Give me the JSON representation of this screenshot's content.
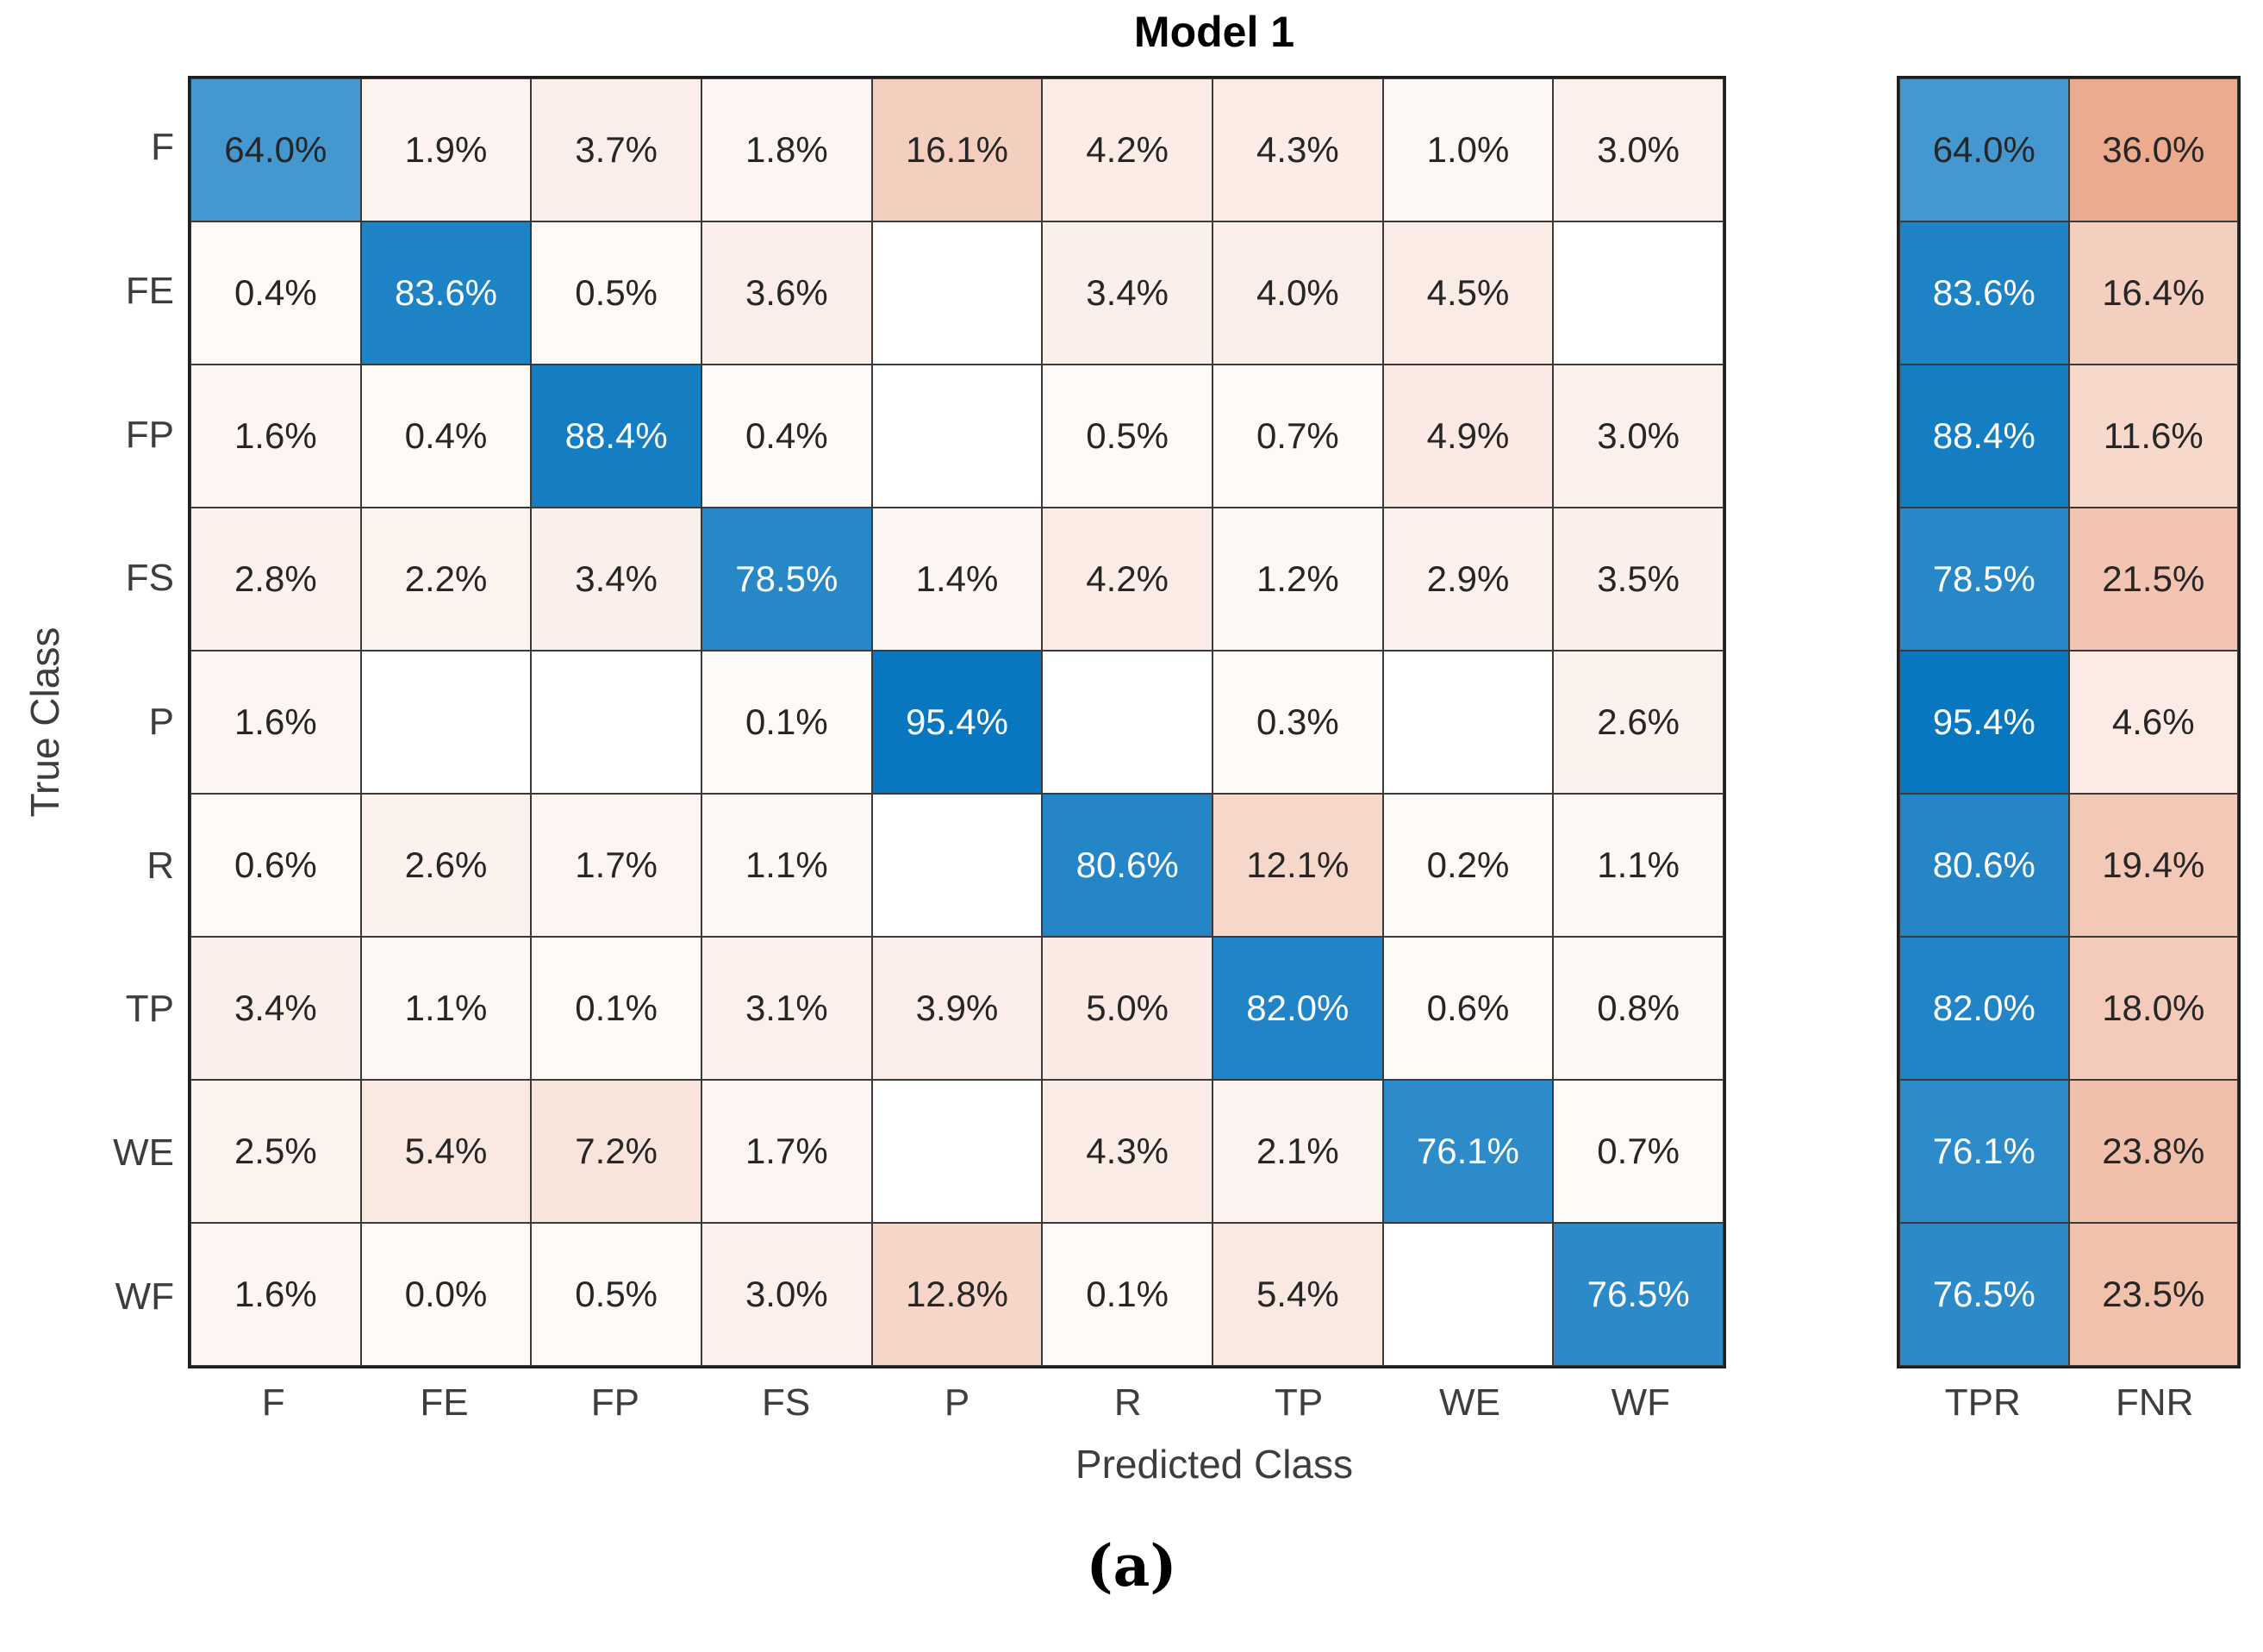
{
  "figure": {
    "title": "Model 1",
    "caption": "(a)",
    "x_axis_label": "Predicted Class",
    "y_axis_label": "True Class"
  },
  "chart_data": {
    "type": "heatmap",
    "subtype": "confusion-matrix",
    "title": "Model 1",
    "xlabel": "Predicted Class",
    "ylabel": "True Class",
    "classes": [
      "F",
      "FE",
      "FP",
      "FS",
      "P",
      "R",
      "TP",
      "WE",
      "WF"
    ],
    "unit": "%",
    "matrix_percent": [
      [
        64.0,
        1.9,
        3.7,
        1.8,
        16.1,
        4.2,
        4.3,
        1.0,
        3.0
      ],
      [
        0.4,
        83.6,
        0.5,
        3.6,
        null,
        3.4,
        4.0,
        4.5,
        null
      ],
      [
        1.6,
        0.4,
        88.4,
        0.4,
        null,
        0.5,
        0.7,
        4.9,
        3.0
      ],
      [
        2.8,
        2.2,
        3.4,
        78.5,
        1.4,
        4.2,
        1.2,
        2.9,
        3.5
      ],
      [
        1.6,
        null,
        null,
        0.1,
        95.4,
        null,
        0.3,
        null,
        2.6
      ],
      [
        0.6,
        2.6,
        1.7,
        1.1,
        null,
        80.6,
        12.1,
        0.2,
        1.1
      ],
      [
        3.4,
        1.1,
        0.1,
        3.1,
        3.9,
        5.0,
        82.0,
        0.6,
        0.8
      ],
      [
        2.5,
        5.4,
        7.2,
        1.7,
        null,
        4.3,
        2.1,
        76.1,
        0.7
      ],
      [
        1.6,
        0.0,
        0.5,
        3.0,
        12.8,
        0.1,
        5.4,
        null,
        76.5
      ]
    ],
    "summary": {
      "columns": [
        "TPR",
        "FNR"
      ],
      "TPR": [
        64.0,
        83.6,
        88.4,
        78.5,
        95.4,
        80.6,
        82.0,
        76.1,
        76.5
      ],
      "FNR": [
        36.0,
        16.4,
        11.6,
        21.5,
        4.6,
        19.4,
        18.0,
        23.8,
        23.5
      ]
    },
    "colors": {
      "diagonal": "#0072BD",
      "off_diagonal": "#D95319",
      "grid_line": "#3a3a3a",
      "background": "#ffffff"
    },
    "layout": {
      "grid": "on",
      "summary_position": "right",
      "blank_cells_are_zero": true
    }
  }
}
